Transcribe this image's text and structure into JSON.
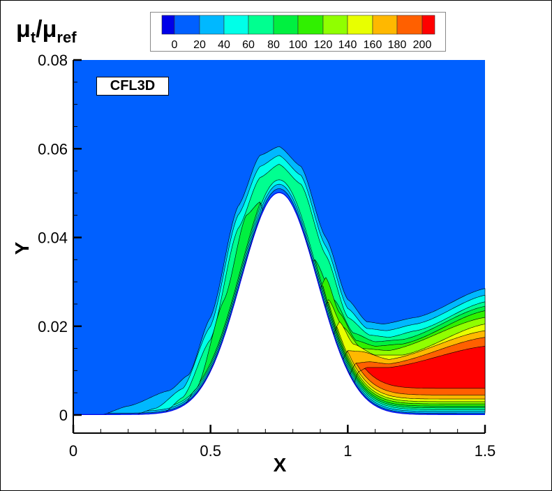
{
  "chart_data": {
    "type": "contour",
    "title": "",
    "xlabel": "X",
    "ylabel": "Y",
    "xlim": [
      0,
      1.5
    ],
    "ylim": [
      -0.004,
      0.08
    ],
    "x_ticks": [
      "0",
      "0.5",
      "1",
      "1.5"
    ],
    "x_tick_values": [
      0,
      0.5,
      1,
      1.5
    ],
    "y_ticks": [
      "0",
      "0.02",
      "0.04",
      "0.06",
      "0.08"
    ],
    "y_tick_values": [
      0,
      0.02,
      0.04,
      0.06,
      0.08
    ],
    "grid": false,
    "annotation": "CFL3D",
    "colorbar": {
      "title_main": "μ",
      "title_sub1": "t",
      "title_sep": "/μ",
      "title_sub2": "ref",
      "placement": "top",
      "levels": [
        "0",
        "20",
        "40",
        "60",
        "80",
        "100",
        "120",
        "140",
        "160",
        "180",
        "200"
      ],
      "colors": [
        "#0000e8",
        "#0060ff",
        "#00b8ff",
        "#00ffe8",
        "#00ff90",
        "#00f040",
        "#30f000",
        "#90ff00",
        "#e8ff00",
        "#ffb800",
        "#ff6000",
        "#ff0000"
      ]
    },
    "geometry": "Gaussian bump on lower wall, peak near X=0.75, Y=0.05",
    "field_summary": "Background 0-20; boundary layer band peaks over bump; max values (>200) in separated wake region 1.05<X<1.5, 0.005<Y<0.015"
  }
}
